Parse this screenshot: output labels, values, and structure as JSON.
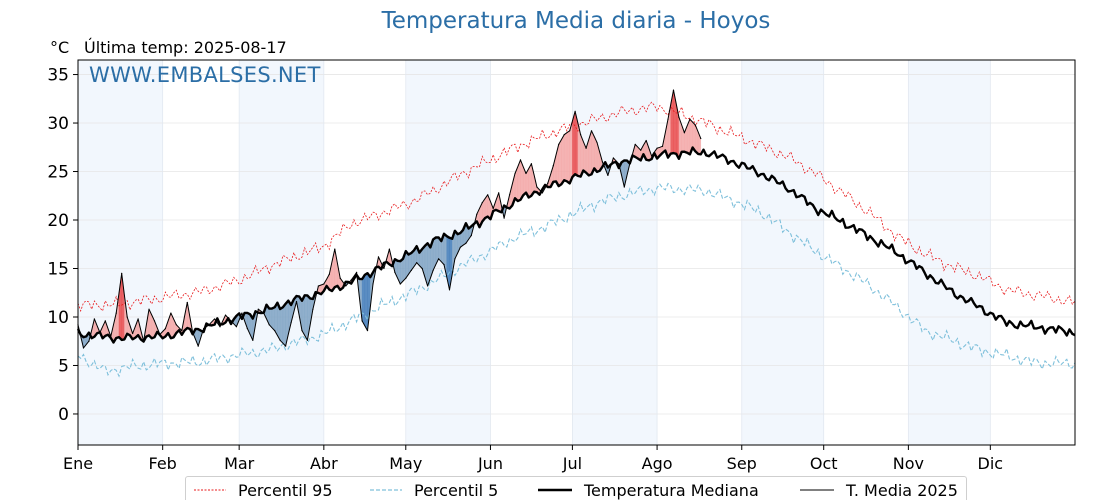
{
  "header": {
    "title": "Temperatura Media diaria - Hoyos",
    "unit": "°C",
    "last_temp_label": "Última temp:",
    "last_temp_date": "2025-08-17",
    "watermark": "WWW.EMBALSES.NET"
  },
  "legend": {
    "p95": "Percentil 95",
    "p5": "Percentil 5",
    "median": "Temperatura Mediana",
    "current": "T. Media 2025"
  },
  "colors": {
    "p95": "#e8191b",
    "p5": "#7fc0db",
    "median": "#000000",
    "current": "#000000",
    "above_fill": "#f4a6a6",
    "above_strong": "#e8494b",
    "below_fill": "#7fa3c4",
    "below_strong": "#3f7ab8",
    "month_band": "#e9f2fb"
  },
  "chart_data": {
    "type": "line",
    "ylim": [
      -3.2,
      36.5
    ],
    "xlim": [
      0,
      365
    ],
    "yticks": [
      0,
      5,
      10,
      15,
      20,
      25,
      30,
      35
    ],
    "months": [
      "Ene",
      "Feb",
      "Mar",
      "Abr",
      "May",
      "Jun",
      "Jul",
      "Ago",
      "Sep",
      "Oct",
      "Nov",
      "Dic"
    ],
    "month_starts": [
      0,
      31,
      59,
      90,
      120,
      151,
      181,
      212,
      243,
      273,
      304,
      334
    ],
    "last_day": 228,
    "series": [
      {
        "name": "Temperatura Mediana",
        "key": "median",
        "values": [
          [
            0,
            8.3
          ],
          [
            15,
            7.8
          ],
          [
            31,
            8.0
          ],
          [
            45,
            8.8
          ],
          [
            59,
            10.0
          ],
          [
            70,
            10.8
          ],
          [
            80,
            11.8
          ],
          [
            90,
            12.6
          ],
          [
            100,
            13.6
          ],
          [
            110,
            15.0
          ],
          [
            120,
            16.3
          ],
          [
            130,
            17.8
          ],
          [
            140,
            18.8
          ],
          [
            151,
            20.4
          ],
          [
            160,
            21.9
          ],
          [
            170,
            23.2
          ],
          [
            181,
            24.3
          ],
          [
            190,
            25.2
          ],
          [
            200,
            26.1
          ],
          [
            212,
            26.6
          ],
          [
            220,
            26.9
          ],
          [
            230,
            27.0
          ],
          [
            240,
            26.0
          ],
          [
            250,
            24.8
          ],
          [
            260,
            23.3
          ],
          [
            270,
            21.2
          ],
          [
            280,
            19.8
          ],
          [
            290,
            18.2
          ],
          [
            300,
            16.6
          ],
          [
            310,
            14.6
          ],
          [
            320,
            12.6
          ],
          [
            330,
            11.0
          ],
          [
            340,
            9.4
          ],
          [
            350,
            9.0
          ],
          [
            365,
            8.4
          ]
        ]
      },
      {
        "name": "Percentil 95",
        "key": "p95",
        "values": [
          [
            0,
            11.2
          ],
          [
            15,
            11.3
          ],
          [
            31,
            12.0
          ],
          [
            45,
            12.6
          ],
          [
            59,
            13.8
          ],
          [
            70,
            15.2
          ],
          [
            80,
            16.3
          ],
          [
            90,
            17.3
          ],
          [
            100,
            19.6
          ],
          [
            110,
            20.6
          ],
          [
            120,
            21.6
          ],
          [
            130,
            23.0
          ],
          [
            140,
            24.7
          ],
          [
            151,
            26.2
          ],
          [
            160,
            27.5
          ],
          [
            170,
            28.6
          ],
          [
            181,
            29.7
          ],
          [
            190,
            30.4
          ],
          [
            200,
            31.2
          ],
          [
            212,
            31.7
          ],
          [
            220,
            31.0
          ],
          [
            230,
            30.0
          ],
          [
            240,
            28.8
          ],
          [
            250,
            27.7
          ],
          [
            260,
            26.5
          ],
          [
            270,
            24.8
          ],
          [
            280,
            22.8
          ],
          [
            290,
            20.7
          ],
          [
            300,
            18.3
          ],
          [
            310,
            16.5
          ],
          [
            320,
            15.2
          ],
          [
            330,
            14.2
          ],
          [
            340,
            12.8
          ],
          [
            350,
            12.3
          ],
          [
            365,
            11.5
          ]
        ]
      },
      {
        "name": "Percentil 5",
        "key": "p5",
        "values": [
          [
            0,
            6.1
          ],
          [
            10,
            4.4
          ],
          [
            20,
            4.9
          ],
          [
            31,
            5.2
          ],
          [
            45,
            5.4
          ],
          [
            59,
            6.1
          ],
          [
            70,
            6.6
          ],
          [
            80,
            7.4
          ],
          [
            90,
            8.2
          ],
          [
            100,
            9.6
          ],
          [
            110,
            11.0
          ],
          [
            120,
            12.2
          ],
          [
            130,
            13.6
          ],
          [
            140,
            15.2
          ],
          [
            151,
            16.8
          ],
          [
            160,
            18.2
          ],
          [
            170,
            19.2
          ],
          [
            181,
            20.6
          ],
          [
            190,
            21.8
          ],
          [
            200,
            22.6
          ],
          [
            212,
            23.3
          ],
          [
            220,
            23.2
          ],
          [
            230,
            23.0
          ],
          [
            240,
            22.0
          ],
          [
            250,
            20.8
          ],
          [
            260,
            18.8
          ],
          [
            270,
            16.8
          ],
          [
            280,
            15.0
          ],
          [
            290,
            13.2
          ],
          [
            300,
            11.0
          ],
          [
            310,
            8.6
          ],
          [
            320,
            7.6
          ],
          [
            330,
            6.6
          ],
          [
            340,
            6.0
          ],
          [
            350,
            5.3
          ],
          [
            365,
            5.2
          ]
        ]
      },
      {
        "name": "T. Media 2025",
        "key": "current",
        "values": [
          [
            0,
            9.2
          ],
          [
            2,
            6.8
          ],
          [
            4,
            7.5
          ],
          [
            6,
            9.8
          ],
          [
            8,
            8.4
          ],
          [
            10,
            9.6
          ],
          [
            12,
            8.0
          ],
          [
            14,
            10.4
          ],
          [
            16,
            14.5
          ],
          [
            18,
            10.0
          ],
          [
            20,
            8.3
          ],
          [
            22,
            9.8
          ],
          [
            24,
            7.5
          ],
          [
            26,
            10.8
          ],
          [
            28,
            9.6
          ],
          [
            30,
            8.2
          ],
          [
            32,
            8.8
          ],
          [
            34,
            10.4
          ],
          [
            36,
            9.2
          ],
          [
            38,
            8.6
          ],
          [
            40,
            11.5
          ],
          [
            42,
            8.4
          ],
          [
            44,
            7.0
          ],
          [
            46,
            8.8
          ],
          [
            48,
            9.2
          ],
          [
            50,
            9.8
          ],
          [
            52,
            9.0
          ],
          [
            54,
            10.2
          ],
          [
            56,
            9.6
          ],
          [
            58,
            9.0
          ],
          [
            60,
            10.4
          ],
          [
            62,
            8.8
          ],
          [
            64,
            7.6
          ],
          [
            66,
            10.8
          ],
          [
            68,
            10.4
          ],
          [
            70,
            9.2
          ],
          [
            72,
            8.6
          ],
          [
            74,
            7.6
          ],
          [
            76,
            7.0
          ],
          [
            78,
            9.4
          ],
          [
            80,
            11.6
          ],
          [
            82,
            8.6
          ],
          [
            84,
            7.6
          ],
          [
            86,
            10.8
          ],
          [
            88,
            13.2
          ],
          [
            90,
            13.4
          ],
          [
            92,
            14.4
          ],
          [
            94,
            17.0
          ],
          [
            96,
            14.0
          ],
          [
            98,
            13.2
          ],
          [
            100,
            13.8
          ],
          [
            102,
            14.6
          ],
          [
            104,
            9.6
          ],
          [
            106,
            8.6
          ],
          [
            108,
            13.4
          ],
          [
            110,
            16.2
          ],
          [
            112,
            15.0
          ],
          [
            114,
            17.0
          ],
          [
            116,
            14.6
          ],
          [
            118,
            13.4
          ],
          [
            120,
            14.0
          ],
          [
            122,
            14.8
          ],
          [
            124,
            15.6
          ],
          [
            126,
            15.0
          ],
          [
            128,
            13.2
          ],
          [
            130,
            14.8
          ],
          [
            132,
            16.0
          ],
          [
            134,
            15.4
          ],
          [
            136,
            12.8
          ],
          [
            138,
            16.0
          ],
          [
            140,
            17.2
          ],
          [
            142,
            17.6
          ],
          [
            144,
            18.4
          ],
          [
            146,
            20.6
          ],
          [
            148,
            21.8
          ],
          [
            150,
            22.6
          ],
          [
            152,
            21.2
          ],
          [
            154,
            22.8
          ],
          [
            156,
            20.2
          ],
          [
            158,
            22.6
          ],
          [
            160,
            24.8
          ],
          [
            162,
            26.2
          ],
          [
            164,
            24.8
          ],
          [
            166,
            25.8
          ],
          [
            168,
            23.4
          ],
          [
            170,
            22.8
          ],
          [
            172,
            23.8
          ],
          [
            174,
            25.6
          ],
          [
            176,
            27.8
          ],
          [
            178,
            28.8
          ],
          [
            180,
            29.2
          ],
          [
            182,
            31.2
          ],
          [
            184,
            28.8
          ],
          [
            186,
            27.4
          ],
          [
            188,
            29.2
          ],
          [
            190,
            28.0
          ],
          [
            192,
            26.0
          ],
          [
            194,
            24.6
          ],
          [
            196,
            26.4
          ],
          [
            198,
            25.8
          ],
          [
            200,
            23.4
          ],
          [
            202,
            25.8
          ],
          [
            204,
            27.8
          ],
          [
            206,
            27.2
          ],
          [
            208,
            28.2
          ],
          [
            210,
            26.6
          ],
          [
            212,
            27.4
          ],
          [
            214,
            27.6
          ],
          [
            216,
            30.4
          ],
          [
            218,
            33.4
          ],
          [
            220,
            30.6
          ],
          [
            222,
            29.0
          ],
          [
            224,
            30.4
          ],
          [
            226,
            29.8
          ],
          [
            228,
            28.4
          ]
        ]
      }
    ]
  }
}
